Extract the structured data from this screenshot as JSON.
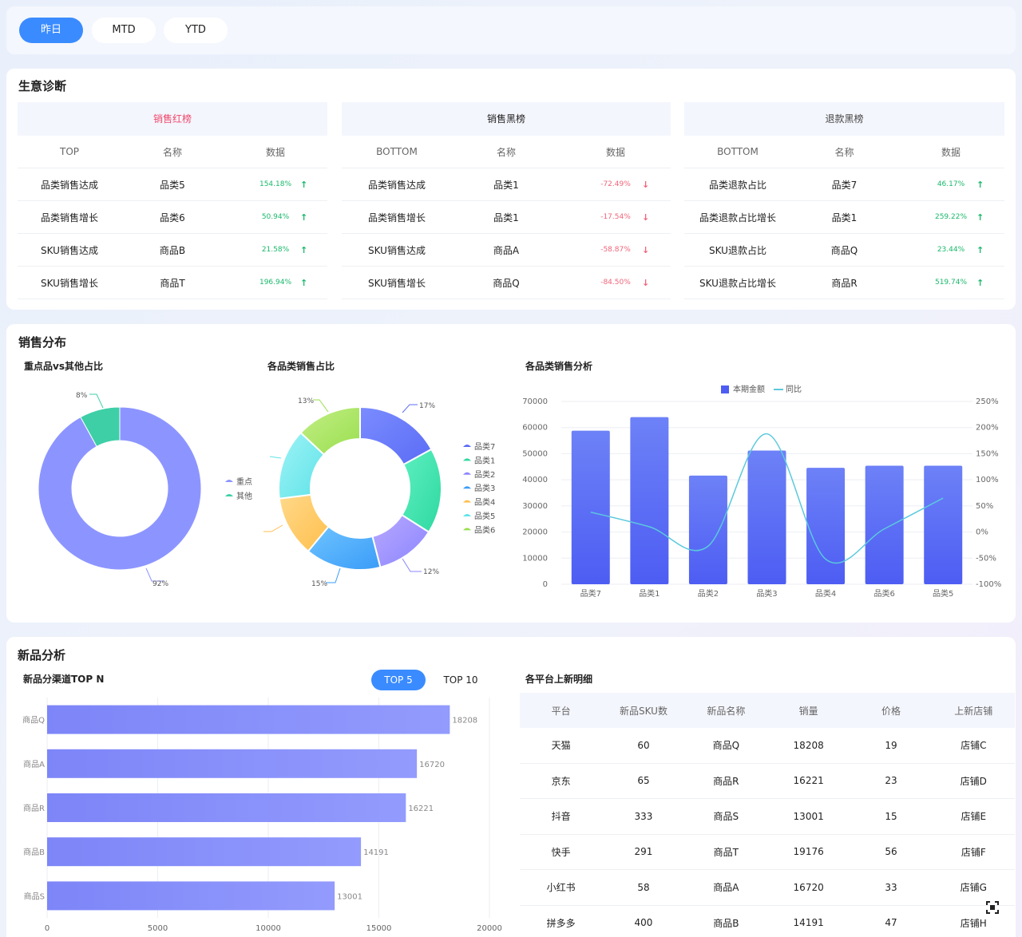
{
  "tabs": [
    "昨日",
    "MTD",
    "YTD"
  ],
  "diagnosis": {
    "title": "生意诊断",
    "tables": [
      {
        "title": "销售红榜",
        "title_color": "#f0476b",
        "headers": [
          "TOP",
          "名称",
          "数据"
        ],
        "rows": [
          {
            "metric": "品类销售达成",
            "name": "品类5",
            "value": "154.18%",
            "trend": "up"
          },
          {
            "metric": "品类销售增长",
            "name": "品类6",
            "value": "50.94%",
            "trend": "up"
          },
          {
            "metric": "SKU销售达成",
            "name": "商品B",
            "value": "21.58%",
            "trend": "up"
          },
          {
            "metric": "SKU销售增长",
            "name": "商品T",
            "value": "196.94%",
            "trend": "up"
          }
        ]
      },
      {
        "title": "销售黑榜",
        "title_color": "#222222",
        "headers": [
          "BOTTOM",
          "名称",
          "数据"
        ],
        "rows": [
          {
            "metric": "品类销售达成",
            "name": "品类1",
            "value": "-72.49%",
            "trend": "down"
          },
          {
            "metric": "品类销售增长",
            "name": "品类1",
            "value": "-17.54%",
            "trend": "down"
          },
          {
            "metric": "SKU销售达成",
            "name": "商品A",
            "value": "-58.87%",
            "trend": "down"
          },
          {
            "metric": "SKU销售增长",
            "name": "商品Q",
            "value": "-84.50%",
            "trend": "down"
          }
        ]
      },
      {
        "title": "退款黑榜",
        "title_color": "#444444",
        "headers": [
          "BOTTOM",
          "名称",
          "数据"
        ],
        "rows": [
          {
            "metric": "品类退款占比",
            "name": "品类7",
            "value": "46.17%",
            "trend": "up"
          },
          {
            "metric": "品类退款占比增长",
            "name": "品类1",
            "value": "259.22%",
            "trend": "up"
          },
          {
            "metric": "SKU退款占比",
            "name": "商品Q",
            "value": "23.44%",
            "trend": "up"
          },
          {
            "metric": "SKU退款占比增长",
            "name": "商品R",
            "value": "519.74%",
            "trend": "up"
          }
        ]
      }
    ]
  },
  "distribution": {
    "title": "销售分布"
  },
  "chart_data": [
    {
      "type": "pie",
      "title": "重点品vs其他占比",
      "categories": [
        "重点",
        "其他"
      ],
      "values": [
        92,
        8
      ],
      "labels": [
        "92%",
        "8%"
      ],
      "colors": [
        "#8c95ff",
        "#3ecfa7"
      ],
      "legend": "right"
    },
    {
      "type": "pie",
      "title": "各品类销售占比",
      "categories": [
        "品类7",
        "品类1",
        "品类2",
        "品类3",
        "品类4",
        "品类5",
        "品类6"
      ],
      "values": [
        17,
        17,
        12,
        15,
        12,
        14,
        13
      ],
      "labels": [
        "17%",
        "",
        "12%",
        "15%",
        "",
        "",
        "13%"
      ],
      "colors": [
        "#5b6cf5",
        "#2fd8a0",
        "#8b85ff",
        "#3a9cf8",
        "#ffbf4d",
        "#5fe3e8",
        "#9adf4f"
      ],
      "legend": "right"
    },
    {
      "type": "bar",
      "title": "各品类销售分析",
      "categories": [
        "品类7",
        "品类1",
        "品类2",
        "品类3",
        "品类4",
        "品类6",
        "品类5"
      ],
      "series": [
        {
          "name": "本期金额",
          "values": [
            58800,
            64000,
            41600,
            51200,
            44600,
            45400,
            45400
          ],
          "axis": "left"
        },
        {
          "name": "同比",
          "type": "line",
          "values": [
            38,
            10,
            -27,
            188,
            -52,
            6,
            65
          ],
          "axis": "right"
        }
      ],
      "ylim": [
        0,
        70000
      ],
      "yticks": [
        "0",
        "10000",
        "20000",
        "30000",
        "40000",
        "50000",
        "60000",
        "70000"
      ],
      "y2lim": [
        -100,
        250
      ],
      "y2ticks": [
        "-100%",
        "-50%",
        "0%",
        "50%",
        "100%",
        "150%",
        "200%",
        "250%"
      ],
      "legend": "top-center"
    },
    {
      "type": "bar",
      "orientation": "horizontal",
      "title": "新品分渠道TOP N",
      "categories": [
        "商品Q",
        "商品A",
        "商品R",
        "商品B",
        "商品S"
      ],
      "values": [
        18208,
        16720,
        16221,
        14191,
        13001
      ],
      "xlim": [
        0,
        20000
      ],
      "xticks": [
        "0",
        "5000",
        "10000",
        "15000",
        "20000"
      ]
    }
  ],
  "newproducts": {
    "title": "新品分析",
    "tabs": [
      "TOP 5",
      "TOP 10"
    ],
    "detail_title": "各平台上新明细",
    "table_headers": [
      "平台",
      "新品SKU数",
      "新品名称",
      "销量",
      "价格",
      "上新店铺"
    ],
    "table_rows": [
      [
        "天猫",
        "60",
        "商品Q",
        "18208",
        "19",
        "店铺C"
      ],
      [
        "京东",
        "65",
        "商品R",
        "16221",
        "23",
        "店铺D"
      ],
      [
        "抖音",
        "333",
        "商品S",
        "13001",
        "15",
        "店铺E"
      ],
      [
        "快手",
        "291",
        "商品T",
        "19176",
        "56",
        "店铺F"
      ],
      [
        "小红书",
        "58",
        "商品A",
        "16720",
        "33",
        "店铺G"
      ],
      [
        "拼多多",
        "400",
        "商品B",
        "14191",
        "47",
        "店铺H"
      ]
    ]
  }
}
